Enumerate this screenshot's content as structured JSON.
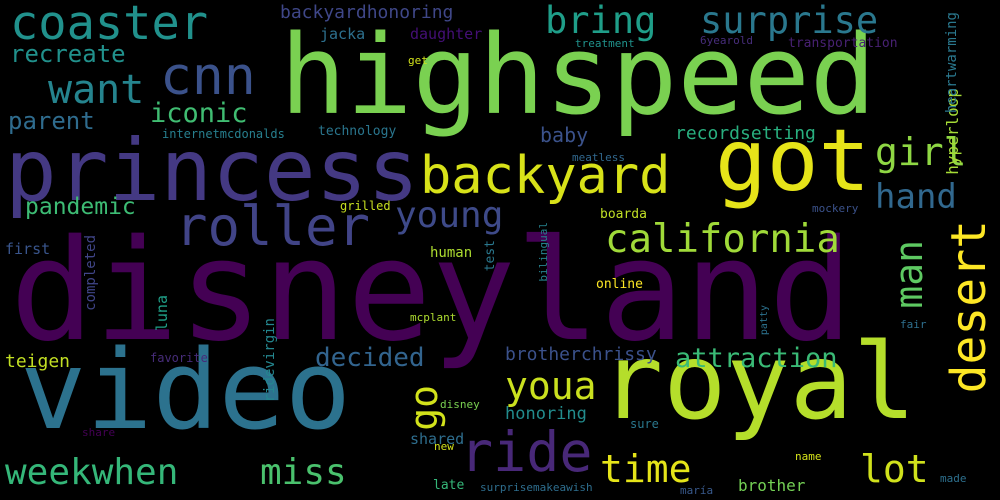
{
  "words": [
    {
      "text": "disneyland",
      "color": "#440154",
      "orient": "h"
    },
    {
      "text": "highspeed",
      "color": "#7ad151",
      "orient": "h"
    },
    {
      "text": "princess",
      "color": "#443983",
      "orient": "h"
    },
    {
      "text": "royal",
      "color": "#b5de2b",
      "orient": "h"
    },
    {
      "text": "video",
      "color": "#2c728e",
      "orient": "h"
    },
    {
      "text": "got",
      "color": "#e6e419",
      "orient": "h"
    },
    {
      "text": "backyard",
      "color": "#d8e219",
      "orient": "h"
    },
    {
      "text": "coaster",
      "color": "#21918c",
      "orient": "h"
    },
    {
      "text": "cnn",
      "color": "#3b528b",
      "orient": "h"
    },
    {
      "text": "roller",
      "color": "#414487",
      "orient": "h"
    },
    {
      "text": "bring",
      "color": "#1f9e89",
      "orient": "h"
    },
    {
      "text": "surprise",
      "color": "#2a788e",
      "orient": "h"
    },
    {
      "text": "want",
      "color": "#25848e",
      "orient": "h"
    },
    {
      "text": "california",
      "color": "#a0da39",
      "orient": "h"
    },
    {
      "text": "desert",
      "color": "#fde725",
      "orient": "v"
    },
    {
      "text": "ride",
      "color": "#482878",
      "orient": "h"
    },
    {
      "text": "young",
      "color": "#3e4a89",
      "orient": "h"
    },
    {
      "text": "girl",
      "color": "#8fd744",
      "orient": "h"
    },
    {
      "text": "hand",
      "color": "#31688e",
      "orient": "h"
    },
    {
      "text": "man",
      "color": "#5ec962",
      "orient": "v"
    },
    {
      "text": "youa",
      "color": "#cae11f",
      "orient": "h"
    },
    {
      "text": "time",
      "color": "#e5e419",
      "orient": "h"
    },
    {
      "text": "lot",
      "color": "#d0e11c",
      "orient": "h"
    },
    {
      "text": "miss",
      "color": "#4ac16d",
      "orient": "h"
    },
    {
      "text": "weekwhen",
      "color": "#35b779",
      "orient": "h"
    },
    {
      "text": "go",
      "color": "#d2e21b",
      "orient": "v"
    },
    {
      "text": "recreate",
      "color": "#21918c",
      "orient": "h"
    },
    {
      "text": "iconic",
      "color": "#40bd72",
      "orient": "h"
    },
    {
      "text": "parent",
      "color": "#2f6c8e",
      "orient": "h"
    },
    {
      "text": "pandemic",
      "color": "#3dbc74",
      "orient": "h"
    },
    {
      "text": "attraction",
      "color": "#3aba76",
      "orient": "h"
    },
    {
      "text": "decided",
      "color": "#32648e",
      "orient": "h"
    },
    {
      "text": "brotherchrissy",
      "color": "#3b518b",
      "orient": "h"
    },
    {
      "text": "teigen",
      "color": "#c2df23",
      "orient": "h"
    },
    {
      "text": "shared",
      "color": "#2e6e8e",
      "orient": "h"
    },
    {
      "text": "honoring",
      "color": "#228c8d",
      "orient": "h"
    },
    {
      "text": "backyardhonoring",
      "color": "#3f4788",
      "orient": "h"
    },
    {
      "text": "jacka",
      "color": "#2d708e",
      "orient": "h"
    },
    {
      "text": "daughter",
      "color": "#440f76",
      "orient": "h"
    },
    {
      "text": "technology",
      "color": "#2a768e",
      "orient": "h"
    },
    {
      "text": "internetmcdonalds",
      "color": "#277f8e",
      "orient": "h"
    },
    {
      "text": "baby",
      "color": "#3b528b",
      "orient": "h"
    },
    {
      "text": "recordsetting",
      "color": "#29af7f",
      "orient": "h"
    },
    {
      "text": "hyperloop",
      "color": "#a5db36",
      "orient": "v"
    },
    {
      "text": "heartwarming",
      "color": "#2a788e",
      "orient": "v"
    },
    {
      "text": "transportation",
      "color": "#482173",
      "orient": "h"
    },
    {
      "text": "treatment",
      "color": "#20928c",
      "orient": "h"
    },
    {
      "text": "6yearold",
      "color": "#472d7b",
      "orient": "h"
    },
    {
      "text": "get",
      "color": "#d2e21b",
      "orient": "h"
    },
    {
      "text": "grilled",
      "color": "#c8e020",
      "orient": "h"
    },
    {
      "text": "meatless",
      "color": "#31688e",
      "orient": "h"
    },
    {
      "text": "boarda",
      "color": "#c0df25",
      "orient": "h"
    },
    {
      "text": "mockery",
      "color": "#3b528b",
      "orient": "h"
    },
    {
      "text": "first",
      "color": "#39558c",
      "orient": "h"
    },
    {
      "text": "completed",
      "color": "#404588",
      "orient": "v"
    },
    {
      "text": "luna",
      "color": "#1fa088",
      "orient": "v"
    },
    {
      "text": "human",
      "color": "#addc30",
      "orient": "h"
    },
    {
      "text": "test",
      "color": "#2a788e",
      "orient": "v"
    },
    {
      "text": "bilingual",
      "color": "#26828e",
      "orient": "v"
    },
    {
      "text": "online",
      "color": "#fde725",
      "orient": "h"
    },
    {
      "text": "ridevirgin",
      "color": "#24868e",
      "orient": "v"
    },
    {
      "text": "mcplant",
      "color": "#addc30",
      "orient": "h"
    },
    {
      "text": "patty",
      "color": "#2c728e",
      "orient": "v"
    },
    {
      "text": "fair",
      "color": "#2e6f8e",
      "orient": "h"
    },
    {
      "text": "favorite",
      "color": "#472c7a",
      "orient": "h"
    },
    {
      "text": "disney",
      "color": "#7ad151",
      "orient": "h"
    },
    {
      "text": "sure",
      "color": "#2a788e",
      "orient": "h"
    },
    {
      "text": "share",
      "color": "#440154",
      "orient": "h"
    },
    {
      "text": "new",
      "color": "#d2e21b",
      "orient": "h"
    },
    {
      "text": "name",
      "color": "#d5e21a",
      "orient": "h"
    },
    {
      "text": "made",
      "color": "#2d708e",
      "orient": "h"
    },
    {
      "text": "late",
      "color": "#35b779",
      "orient": "h"
    },
    {
      "text": "surprisemakeawish",
      "color": "#2e6e8e",
      "orient": "h"
    },
    {
      "text": "maría",
      "color": "#38598c",
      "orient": "h"
    },
    {
      "text": "brother",
      "color": "#74d055",
      "orient": "h"
    }
  ]
}
